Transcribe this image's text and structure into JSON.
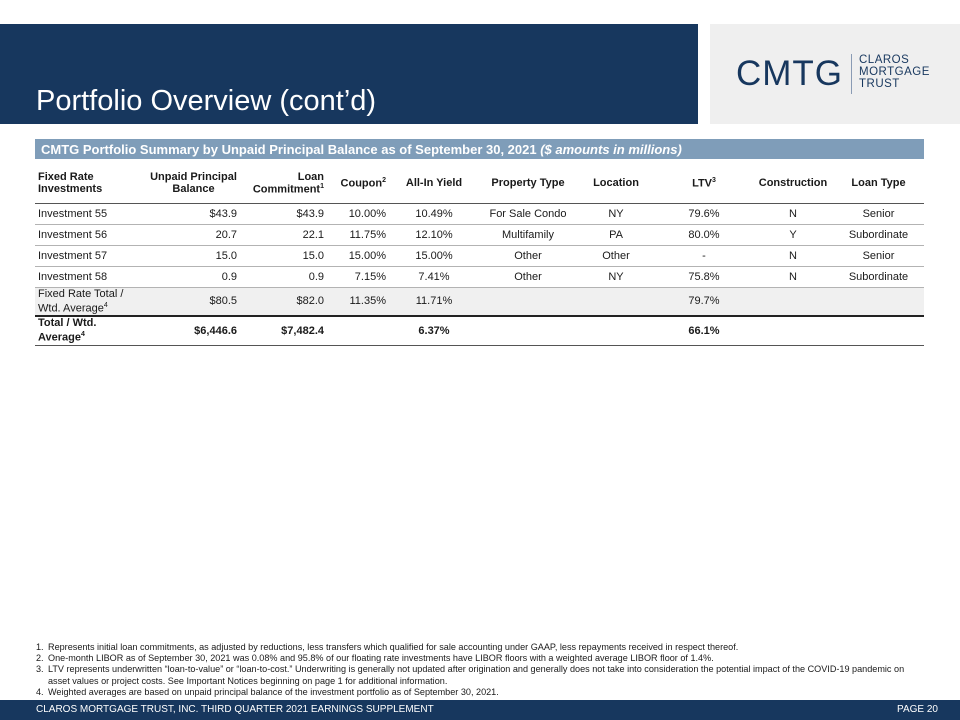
{
  "header": {
    "title": "Portfolio Overview (cont’d)"
  },
  "logo": {
    "main": "CMTG",
    "sub": [
      "CLAROS",
      "MORTGAGE",
      "TRUST"
    ]
  },
  "section": {
    "title": "CMTG Portfolio Summary by Unpaid Principal Balance as of September 30, 2021",
    "note": "($ amounts in millions)"
  },
  "table": {
    "headers": [
      "Fixed Rate Investments",
      "Unpaid Principal Balance",
      "Loan Commitment",
      "Coupon",
      "All-In Yield",
      "Property Type",
      "Location",
      "LTV",
      "Construction",
      "Loan Type"
    ],
    "header_sups": {
      "commitment": "1",
      "coupon": "2",
      "ltv": "3"
    },
    "rows": [
      [
        "Investment 55",
        "$43.9",
        "$43.9",
        "10.00%",
        "10.49%",
        "For Sale Condo",
        "NY",
        "79.6%",
        "N",
        "Senior"
      ],
      [
        "Investment 56",
        "20.7",
        "22.1",
        "11.75%",
        "12.10%",
        "Multifamily",
        "PA",
        "80.0%",
        "Y",
        "Subordinate"
      ],
      [
        "Investment 57",
        "15.0",
        "15.0",
        "15.00%",
        "15.00%",
        "Other",
        "Other",
        "-",
        "N",
        "Senior"
      ],
      [
        "Investment 58",
        "0.9",
        "0.9",
        "7.15%",
        "7.41%",
        "Other",
        "NY",
        "75.8%",
        "N",
        "Subordinate"
      ]
    ],
    "subtotal": {
      "label_line1": "Fixed Rate Total /",
      "label_line2": "Wtd. Average",
      "label_sup": "4",
      "upb": "$80.5",
      "commitment": "$82.0",
      "coupon": "11.35%",
      "yield": "11.71%",
      "ltv": "79.7%"
    },
    "total": {
      "label_line1": "Total / Wtd.",
      "label_line2": "Average",
      "label_sup": "4",
      "upb": "$6,446.6",
      "commitment": "$7,482.4",
      "yield": "6.37%",
      "ltv": "66.1%"
    }
  },
  "footnotes": [
    {
      "num": "1.",
      "text": "Represents initial loan commitments, as adjusted by reductions, less transfers which qualified for sale accounting under GAAP, less repayments received in respect thereof."
    },
    {
      "num": "2.",
      "text": "One-month LIBOR as of September 30, 2021 was 0.08% and 95.8% of our floating rate investments have LIBOR floors with a weighted average LIBOR floor of 1.4%."
    },
    {
      "num": "3.",
      "text": "LTV represents underwritten “loan-to-value” or “loan-to-cost.” Underwriting is generally not updated after origination and generally does not take into consideration the potential impact of the COVID-19 pandemic on asset values or project costs. See Important Notices beginning on page 1 for additional information."
    },
    {
      "num": "4.",
      "text": "Weighted averages are based on unpaid principal balance of the investment portfolio as of September 30, 2021."
    }
  ],
  "footer": {
    "left": "CLAROS MORTGAGE TRUST, INC. THIRD QUARTER 2021 EARNINGS SUPPLEMENT",
    "right": "PAGE 20"
  },
  "colors": {
    "navy": "#17375e",
    "section_bar": "#7f9db9",
    "logo_bg": "#efefef"
  }
}
